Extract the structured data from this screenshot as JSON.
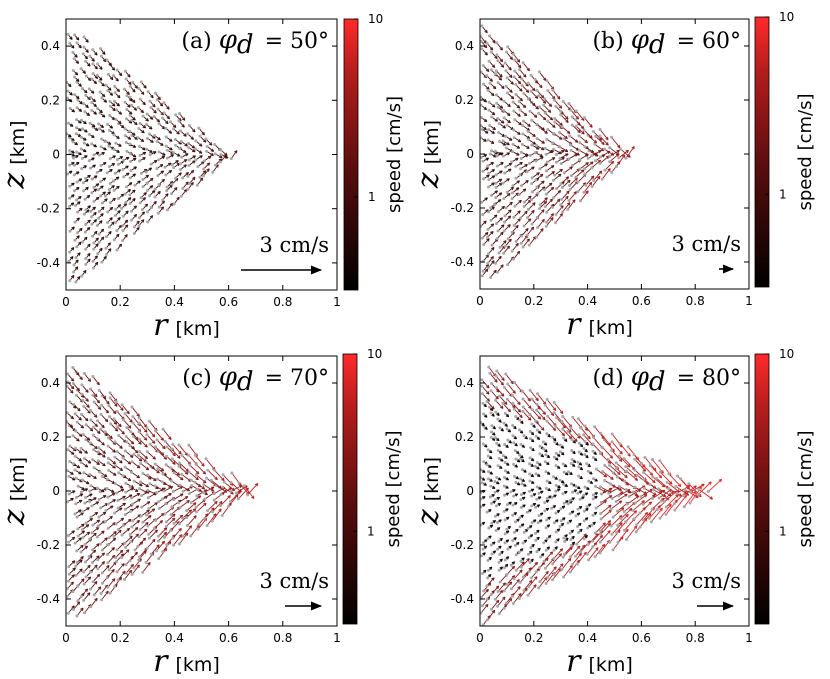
{
  "chart_data": [
    {
      "type": "scatter",
      "subtype": "vector-field",
      "panel": "(a)",
      "title": "(a)",
      "title_symbol": "φ",
      "title_subscript": "d",
      "title_value": "= 50°",
      "xlabel_symbol": "r",
      "xlabel_unit": "[km]",
      "ylabel_symbol": "z",
      "ylabel_unit": "[km]",
      "xlim": [
        0,
        1
      ],
      "ylim": [
        -0.5,
        0.5
      ],
      "xticks": [
        0,
        0.2,
        0.4,
        0.6,
        0.8,
        1
      ],
      "xtick_labels": [
        "0",
        "0.2",
        "0.4",
        "0.6",
        "0.8",
        "1"
      ],
      "yticks": [
        0.4,
        0.2,
        0,
        -0.2,
        -0.4
      ],
      "ytick_labels": [
        "0.4",
        "0.2",
        "0",
        "-0.2",
        "-0.4"
      ],
      "reference_arrow_label": "3 cm/s",
      "reference_speed_cm_s": 3,
      "field_extent_r_km": 0.62,
      "relative_speed": 0.3,
      "colorbar": {
        "label": "speed [cm/s]",
        "scale": "log",
        "ticks": [
          10,
          1
        ],
        "tick_labels": [
          "10",
          "1"
        ]
      }
    },
    {
      "type": "scatter",
      "subtype": "vector-field",
      "panel": "(b)",
      "title": "(b)",
      "title_symbol": "φ",
      "title_subscript": "d",
      "title_value": "= 60°",
      "xlabel_symbol": "r",
      "xlabel_unit": "[km]",
      "ylabel_symbol": "z",
      "ylabel_unit": "[km]",
      "xlim": [
        0,
        1
      ],
      "ylim": [
        -0.5,
        0.5
      ],
      "xticks": [
        0,
        0.2,
        0.4,
        0.6,
        0.8,
        1
      ],
      "xtick_labels": [
        "0",
        "0.2",
        "0.4",
        "0.6",
        "0.8",
        "1"
      ],
      "yticks": [
        0.4,
        0.2,
        0,
        -0.2,
        -0.4
      ],
      "ytick_labels": [
        "0.4",
        "0.2",
        "0",
        "-0.2",
        "-0.4"
      ],
      "reference_arrow_label": "3 cm/s",
      "reference_speed_cm_s": 3,
      "field_extent_r_km": 0.56,
      "relative_speed": 0.55,
      "colorbar": {
        "label": "speed [cm/s]",
        "scale": "log",
        "ticks": [
          10,
          1
        ],
        "tick_labels": [
          "10",
          "1"
        ]
      }
    },
    {
      "type": "scatter",
      "subtype": "vector-field",
      "panel": "(c)",
      "title": "(c)",
      "title_symbol": "φ",
      "title_subscript": "d",
      "title_value": "= 70°",
      "xlabel_symbol": "r",
      "xlabel_unit": "[km]",
      "ylabel_symbol": "z",
      "ylabel_unit": "[km]",
      "xlim": [
        0,
        1
      ],
      "ylim": [
        -0.5,
        0.5
      ],
      "xticks": [
        0,
        0.2,
        0.4,
        0.6,
        0.8,
        1
      ],
      "xtick_labels": [
        "0",
        "0.2",
        "0.4",
        "0.6",
        "0.8",
        "1"
      ],
      "yticks": [
        0.4,
        0.2,
        0,
        -0.2,
        -0.4
      ],
      "ytick_labels": [
        "0.4",
        "0.2",
        "0",
        "-0.2",
        "-0.4"
      ],
      "reference_arrow_label": "3 cm/s",
      "reference_speed_cm_s": 3,
      "field_extent_r_km": 0.69,
      "relative_speed": 0.65,
      "colorbar": {
        "label": "speed [cm/s]",
        "scale": "log",
        "ticks": [
          10,
          1
        ],
        "tick_labels": [
          "10",
          "1"
        ]
      }
    },
    {
      "type": "scatter",
      "subtype": "vector-field",
      "panel": "(d)",
      "title": "(d)",
      "title_symbol": "φ",
      "title_subscript": "d",
      "title_value": "= 80°",
      "xlabel_symbol": "r",
      "xlabel_unit": "[km]",
      "ylabel_symbol": "z",
      "ylabel_unit": "[km]",
      "xlim": [
        0,
        1
      ],
      "ylim": [
        -0.5,
        0.5
      ],
      "xticks": [
        0,
        0.2,
        0.4,
        0.6,
        0.8,
        1
      ],
      "xtick_labels": [
        "0",
        "0.2",
        "0.4",
        "0.6",
        "0.8",
        "1"
      ],
      "yticks": [
        0.4,
        0.2,
        0,
        -0.2,
        -0.4
      ],
      "ytick_labels": [
        "0.4",
        "0.2",
        "0",
        "-0.2",
        "-0.4"
      ],
      "reference_arrow_label": "3 cm/s",
      "reference_speed_cm_s": 3,
      "field_extent_r_km": 0.85,
      "relative_speed": 0.85,
      "colorbar": {
        "label": "speed [cm/s]",
        "scale": "log",
        "ticks": [
          10,
          1
        ],
        "tick_labels": [
          "10",
          "1"
        ]
      }
    }
  ],
  "colors": {
    "slow": "#000000",
    "mid": "#8a1a1a",
    "fast": "#ff2a2a",
    "particle": "#a8a8a8",
    "axis": "#000000"
  }
}
